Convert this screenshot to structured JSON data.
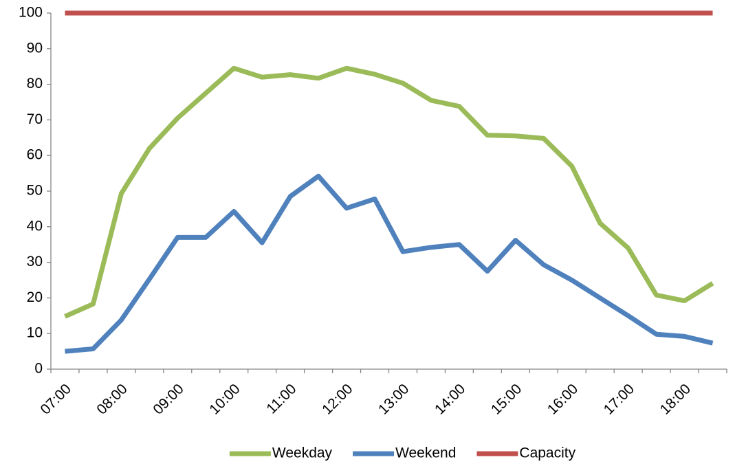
{
  "chart_data": {
    "type": "line",
    "categories": [
      "07:00",
      null,
      "08:00",
      null,
      "09:00",
      null,
      "10:00",
      null,
      "11:00",
      null,
      "12:00",
      null,
      "13:00",
      null,
      "14:00",
      null,
      "15:00",
      null,
      "16:00",
      null,
      "17:00",
      null,
      "18:00",
      null
    ],
    "series": [
      {
        "name": "Weekday",
        "color": "#9bbb59",
        "values": [
          14.8,
          18.3,
          49.3,
          62,
          70.5,
          77.5,
          84.5,
          82,
          82.7,
          81.7,
          84.5,
          82.8,
          80.3,
          75.5,
          73.8,
          65.7,
          65.5,
          64.8,
          57,
          41,
          34,
          20.8,
          19.2,
          24.1
        ]
      },
      {
        "name": "Weekend",
        "color": "#4f81bd",
        "values": [
          5,
          5.7,
          13.8,
          25.3,
          37,
          37,
          44.3,
          35.5,
          48.5,
          54.2,
          45.2,
          47.8,
          33,
          34.2,
          35,
          27.5,
          36.2,
          29.3,
          25,
          20,
          15,
          9.8,
          9.2,
          7.3
        ]
      },
      {
        "name": "Capacity",
        "color": "#c0504d",
        "values": [
          100,
          100,
          100,
          100,
          100,
          100,
          100,
          100,
          100,
          100,
          100,
          100,
          100,
          100,
          100,
          100,
          100,
          100,
          100,
          100,
          100,
          100,
          100,
          100
        ]
      }
    ],
    "ylim": [
      0,
      100
    ],
    "yticks": [
      0,
      10,
      20,
      30,
      40,
      50,
      60,
      70,
      80,
      90,
      100
    ],
    "grid": false,
    "legend": "bottom"
  }
}
